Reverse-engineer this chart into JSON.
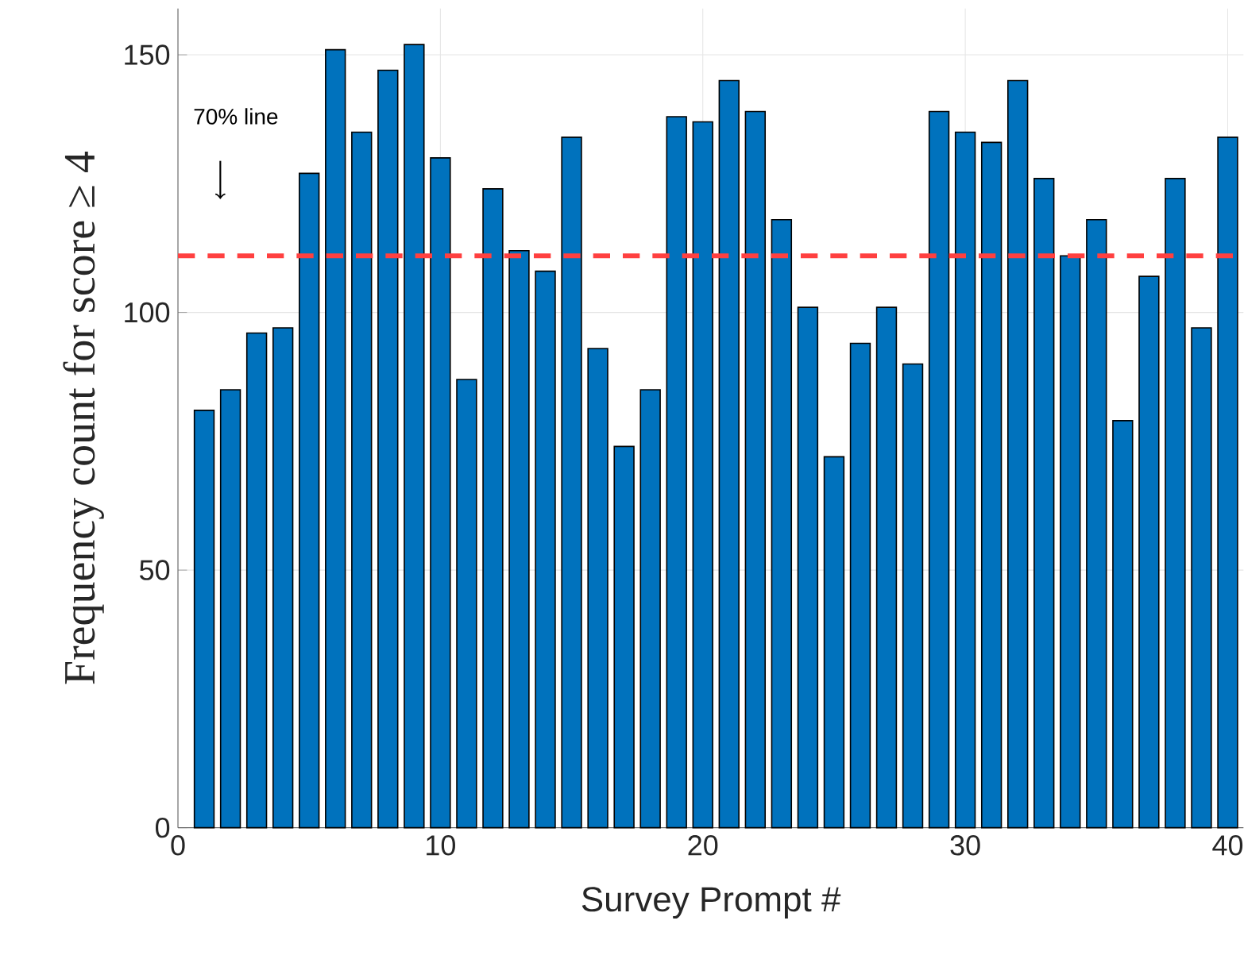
{
  "chart_data": {
    "type": "bar",
    "xlabel": "Survey Prompt #",
    "ylabel": "Frequency count for score ≥ 4",
    "x": [
      1,
      2,
      3,
      4,
      5,
      6,
      7,
      8,
      9,
      10,
      11,
      12,
      13,
      14,
      15,
      16,
      17,
      18,
      19,
      20,
      21,
      22,
      23,
      24,
      25,
      26,
      27,
      28,
      29,
      30,
      31,
      32,
      33,
      34,
      35,
      36,
      37,
      38,
      39,
      40
    ],
    "values": [
      81,
      85,
      96,
      97,
      127,
      151,
      135,
      147,
      152,
      130,
      87,
      124,
      112,
      108,
      134,
      93,
      74,
      85,
      138,
      137,
      145,
      139,
      118,
      101,
      72,
      94,
      101,
      90,
      139,
      135,
      133,
      145,
      126,
      111,
      118,
      79,
      107,
      126,
      97,
      134
    ],
    "color": "#0072bd",
    "xlim": [
      0,
      40.6
    ],
    "ylim": [
      0,
      159
    ],
    "xticks": [
      0,
      10,
      20,
      30,
      40
    ],
    "yticks": [
      0,
      50,
      100,
      150
    ],
    "grid": true,
    "annotations": [
      "70% line"
    ],
    "ref_lines": [
      {
        "axis": "y",
        "value": 111,
        "color": "#ff4040",
        "line_style": "dashed"
      }
    ]
  }
}
